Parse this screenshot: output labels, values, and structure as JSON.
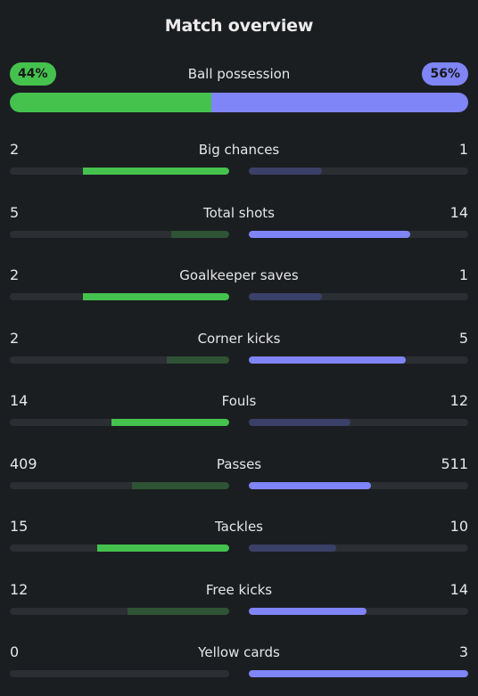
{
  "title": "Match overview",
  "possession": {
    "label": "Ball possession",
    "home_label": "44%",
    "away_label": "56%",
    "home_value": 44,
    "away_value": 56
  },
  "colors": {
    "home_accent": "#45c24e",
    "away_accent": "#7f84f7",
    "home_muted": "#2f5335",
    "away_muted": "#3b4068"
  },
  "stats": [
    {
      "name": "Big chances",
      "home": "2",
      "away": "1",
      "home_share": 0.667,
      "away_share": 0.333
    },
    {
      "name": "Total shots",
      "home": "5",
      "away": "14",
      "home_share": 0.263,
      "away_share": 0.737
    },
    {
      "name": "Goalkeeper saves",
      "home": "2",
      "away": "1",
      "home_share": 0.667,
      "away_share": 0.333
    },
    {
      "name": "Corner kicks",
      "home": "2",
      "away": "5",
      "home_share": 0.286,
      "away_share": 0.714
    },
    {
      "name": "Fouls",
      "home": "14",
      "away": "12",
      "home_share": 0.538,
      "away_share": 0.462
    },
    {
      "name": "Passes",
      "home": "409",
      "away": "511",
      "home_share": 0.445,
      "away_share": 0.555
    },
    {
      "name": "Tackles",
      "home": "15",
      "away": "10",
      "home_share": 0.6,
      "away_share": 0.4
    },
    {
      "name": "Free kicks",
      "home": "12",
      "away": "14",
      "home_share": 0.462,
      "away_share": 0.538
    },
    {
      "name": "Yellow cards",
      "home": "0",
      "away": "3",
      "home_share": 0,
      "away_share": 1
    }
  ]
}
